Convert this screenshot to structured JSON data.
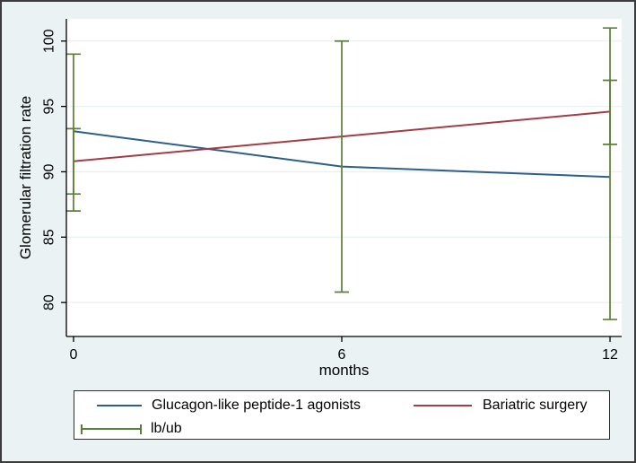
{
  "chart_data": {
    "type": "line",
    "title": "",
    "xlabel": "months",
    "ylabel": "Glomerular filtration rate",
    "x": [
      0,
      6,
      12
    ],
    "xtick_labels": [
      "0",
      "6",
      "12"
    ],
    "ytick_values": [
      80,
      85,
      90,
      95,
      100
    ],
    "xlim": [
      -0.16,
      12.26
    ],
    "ylim": [
      77.4,
      101.7
    ],
    "grid": true,
    "legend_position": "bottom",
    "series": [
      {
        "name": "Glucagon-like peptide-1 agonists",
        "color": "#2d5f8a",
        "values": [
          93.1,
          90.4,
          89.6
        ]
      },
      {
        "name": "Bariatric surgery",
        "color": "#a23c46",
        "values": [
          90.8,
          92.7,
          94.6
        ]
      }
    ],
    "error_bars": {
      "name": "lb/ub",
      "color": "#5b7f35",
      "intervals": [
        {
          "x": 0,
          "low": 87.0,
          "high": 99.0
        },
        {
          "x": 0,
          "low": 88.3,
          "high": 93.3
        },
        {
          "x": 6,
          "low": 80.8,
          "high": 100.0
        },
        {
          "x": 12,
          "low": 78.7,
          "high": 101.0
        },
        {
          "x": 12,
          "low": 92.1,
          "high": 97.0
        }
      ]
    }
  },
  "colors": {
    "background": "#eaf2f3",
    "plot_background": "#ffffff",
    "gridline": "#e8f0f3",
    "axis": "#000000",
    "text": "#000000"
  }
}
